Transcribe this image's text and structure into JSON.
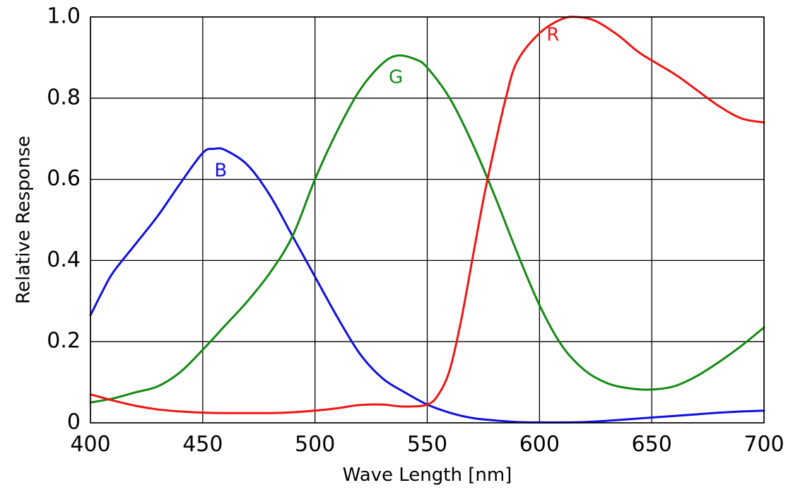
{
  "chart_data": {
    "type": "line",
    "title": "",
    "xlabel": "Wave Length [nm]",
    "ylabel": "Relative Response",
    "xlim": [
      400,
      700
    ],
    "ylim": [
      0,
      1.0
    ],
    "grid": true,
    "legend": "none",
    "x_ticks": [
      400,
      450,
      500,
      550,
      600,
      650,
      700
    ],
    "x_tick_labels": [
      "400",
      "450",
      "500",
      "550",
      "600",
      "650",
      "700"
    ],
    "y_ticks": [
      0,
      0.2,
      0.4,
      0.6,
      0.8,
      1.0
    ],
    "y_tick_labels": [
      "0",
      "0.2",
      "0.4",
      "0.6",
      "0.8",
      "1.0"
    ],
    "series": [
      {
        "name": "B",
        "color": "#1010e0",
        "label_at": [
          458,
          0.62
        ],
        "points": [
          [
            400,
            0.265
          ],
          [
            405,
            0.32
          ],
          [
            410,
            0.37
          ],
          [
            420,
            0.44
          ],
          [
            430,
            0.51
          ],
          [
            440,
            0.59
          ],
          [
            450,
            0.665
          ],
          [
            455,
            0.675
          ],
          [
            460,
            0.672
          ],
          [
            470,
            0.635
          ],
          [
            480,
            0.56
          ],
          [
            490,
            0.46
          ],
          [
            500,
            0.36
          ],
          [
            510,
            0.26
          ],
          [
            520,
            0.17
          ],
          [
            530,
            0.11
          ],
          [
            540,
            0.075
          ],
          [
            550,
            0.045
          ],
          [
            560,
            0.025
          ],
          [
            570,
            0.012
          ],
          [
            580,
            0.006
          ],
          [
            590,
            0.002
          ],
          [
            600,
            0.001
          ],
          [
            610,
            0.001
          ],
          [
            620,
            0.002
          ],
          [
            630,
            0.005
          ],
          [
            640,
            0.009
          ],
          [
            650,
            0.013
          ],
          [
            660,
            0.017
          ],
          [
            670,
            0.021
          ],
          [
            680,
            0.025
          ],
          [
            690,
            0.028
          ],
          [
            700,
            0.03
          ]
        ]
      },
      {
        "name": "G",
        "color": "#138a13",
        "label_at": [
          536,
          0.85
        ],
        "points": [
          [
            400,
            0.05
          ],
          [
            410,
            0.06
          ],
          [
            420,
            0.075
          ],
          [
            430,
            0.09
          ],
          [
            440,
            0.125
          ],
          [
            450,
            0.18
          ],
          [
            460,
            0.24
          ],
          [
            470,
            0.3
          ],
          [
            480,
            0.37
          ],
          [
            490,
            0.46
          ],
          [
            500,
            0.6
          ],
          [
            510,
            0.72
          ],
          [
            520,
            0.82
          ],
          [
            530,
            0.885
          ],
          [
            537,
            0.905
          ],
          [
            545,
            0.895
          ],
          [
            550,
            0.875
          ],
          [
            560,
            0.8
          ],
          [
            570,
            0.69
          ],
          [
            580,
            0.56
          ],
          [
            590,
            0.42
          ],
          [
            600,
            0.29
          ],
          [
            610,
            0.19
          ],
          [
            620,
            0.13
          ],
          [
            630,
            0.098
          ],
          [
            640,
            0.085
          ],
          [
            650,
            0.082
          ],
          [
            660,
            0.09
          ],
          [
            670,
            0.115
          ],
          [
            680,
            0.15
          ],
          [
            690,
            0.19
          ],
          [
            700,
            0.235
          ]
        ]
      },
      {
        "name": "R",
        "color": "#f01414",
        "label_at": [
          606,
          0.955
        ],
        "points": [
          [
            400,
            0.07
          ],
          [
            410,
            0.055
          ],
          [
            420,
            0.042
          ],
          [
            430,
            0.033
          ],
          [
            440,
            0.028
          ],
          [
            450,
            0.025
          ],
          [
            460,
            0.024
          ],
          [
            470,
            0.024
          ],
          [
            480,
            0.024
          ],
          [
            490,
            0.026
          ],
          [
            500,
            0.03
          ],
          [
            510,
            0.036
          ],
          [
            520,
            0.044
          ],
          [
            530,
            0.045
          ],
          [
            540,
            0.04
          ],
          [
            550,
            0.045
          ],
          [
            555,
            0.07
          ],
          [
            560,
            0.13
          ],
          [
            565,
            0.25
          ],
          [
            570,
            0.4
          ],
          [
            575,
            0.55
          ],
          [
            580,
            0.68
          ],
          [
            585,
            0.8
          ],
          [
            590,
            0.89
          ],
          [
            600,
            0.96
          ],
          [
            610,
            0.995
          ],
          [
            617,
            1.0
          ],
          [
            625,
            0.99
          ],
          [
            635,
            0.955
          ],
          [
            645,
            0.91
          ],
          [
            660,
            0.86
          ],
          [
            670,
            0.82
          ],
          [
            680,
            0.78
          ],
          [
            690,
            0.75
          ],
          [
            700,
            0.74
          ]
        ]
      }
    ]
  }
}
